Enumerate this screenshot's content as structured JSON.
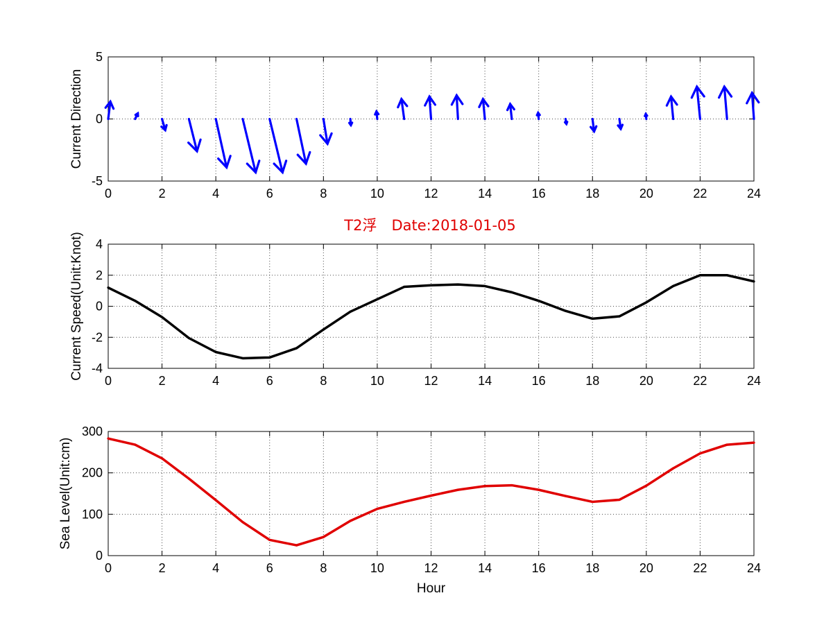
{
  "colors": {
    "direction": "#0000ff",
    "speed": "#000000",
    "sea_level": "#e00000",
    "title": "#e00000"
  },
  "chart_data": [
    {
      "type": "quiver",
      "ylabel": "Current Direction",
      "xlim": [
        0,
        24
      ],
      "ylim": [
        -5,
        5
      ],
      "xticks": [
        0,
        2,
        4,
        6,
        8,
        10,
        12,
        14,
        16,
        18,
        20,
        22,
        24
      ],
      "yticks": [
        -5,
        0,
        5
      ],
      "grid": true,
      "x": [
        0,
        1,
        2,
        3,
        4,
        5,
        6,
        7,
        8,
        9,
        10,
        11,
        12,
        13,
        14,
        15,
        16,
        17,
        18,
        19,
        20,
        21,
        22,
        23,
        24
      ],
      "u": [
        0.08,
        0.1,
        0.12,
        0.3,
        0.4,
        0.48,
        0.48,
        0.35,
        0.15,
        0.02,
        -0.03,
        -0.1,
        -0.06,
        -0.05,
        -0.07,
        -0.06,
        -0.02,
        0.03,
        0.06,
        0.05,
        -0.02,
        -0.08,
        -0.12,
        -0.1,
        -0.07
      ],
      "v": [
        1.4,
        0.45,
        -0.9,
        -2.6,
        -3.9,
        -4.3,
        -4.3,
        -3.6,
        -2.0,
        -0.5,
        0.6,
        1.6,
        1.8,
        1.9,
        1.6,
        1.2,
        0.5,
        -0.4,
        -1.0,
        -0.8,
        0.4,
        1.8,
        2.6,
        2.6,
        2.1
      ]
    },
    {
      "type": "line",
      "title": "T2浮　Date:2018-01-05",
      "ylabel": "Current Speed(Unit:Knot)",
      "xlim": [
        0,
        24
      ],
      "ylim": [
        -4,
        4
      ],
      "xticks": [
        0,
        2,
        4,
        6,
        8,
        10,
        12,
        14,
        16,
        18,
        20,
        22,
        24
      ],
      "yticks": [
        -4,
        -2,
        0,
        2,
        4
      ],
      "grid": true,
      "x": [
        0,
        1,
        2,
        3,
        4,
        5,
        6,
        7,
        8,
        9,
        10,
        11,
        12,
        13,
        14,
        15,
        16,
        17,
        18,
        19,
        20,
        21,
        22,
        23,
        24
      ],
      "y": [
        1.2,
        0.35,
        -0.7,
        -2.05,
        -2.95,
        -3.35,
        -3.3,
        -2.7,
        -1.5,
        -0.35,
        0.45,
        1.25,
        1.35,
        1.4,
        1.3,
        0.9,
        0.35,
        -0.3,
        -0.8,
        -0.65,
        0.25,
        1.3,
        2.0,
        2.0,
        1.6
      ]
    },
    {
      "type": "line",
      "xlabel": "Hour",
      "ylabel": "Sea Level(Unit:cm)",
      "xlim": [
        0,
        24
      ],
      "ylim": [
        0,
        300
      ],
      "xticks": [
        0,
        2,
        4,
        6,
        8,
        10,
        12,
        14,
        16,
        18,
        20,
        22,
        24
      ],
      "yticks": [
        0,
        100,
        200,
        300
      ],
      "grid": true,
      "x": [
        0,
        1,
        2,
        3,
        4,
        5,
        6,
        7,
        8,
        9,
        10,
        11,
        12,
        13,
        14,
        15,
        16,
        17,
        18,
        19,
        20,
        21,
        22,
        23,
        24
      ],
      "y": [
        283,
        268,
        235,
        186,
        134,
        81,
        38,
        25,
        45,
        84,
        113,
        130,
        145,
        159,
        168,
        170,
        159,
        144,
        130,
        135,
        169,
        211,
        247,
        268,
        273
      ]
    }
  ]
}
